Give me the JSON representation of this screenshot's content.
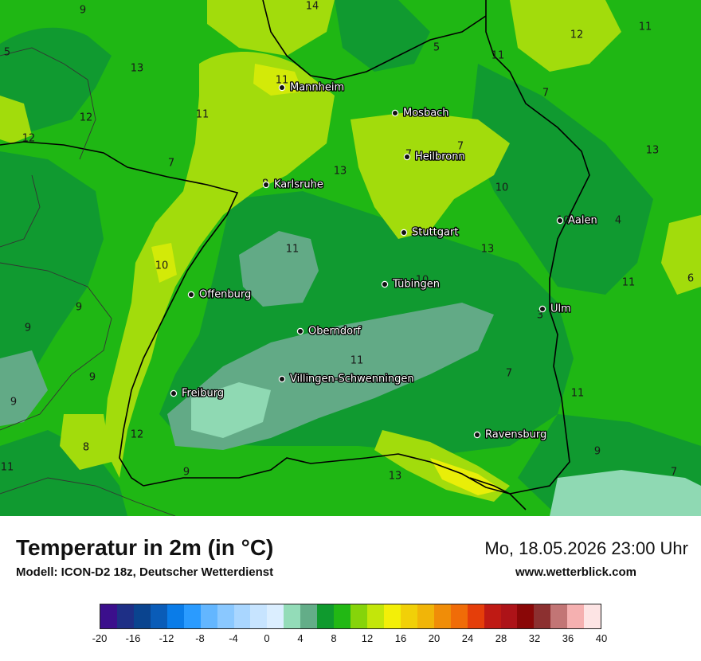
{
  "map": {
    "contour_labels": [
      {
        "text": "9",
        "tone": "dark"
      },
      {
        "text": "14",
        "tone": "dark"
      },
      {
        "text": "5",
        "tone": "dark"
      },
      {
        "text": "12",
        "tone": "dark"
      },
      {
        "text": "11",
        "tone": "dark"
      },
      {
        "text": "5",
        "tone": "dark"
      },
      {
        "text": "11",
        "tone": "dark"
      },
      {
        "text": "13",
        "tone": "dark"
      },
      {
        "text": "11",
        "tone": "dark"
      },
      {
        "text": "7",
        "tone": "dark"
      },
      {
        "text": "11",
        "tone": "dark"
      },
      {
        "text": "12",
        "tone": "dark"
      },
      {
        "text": "12",
        "tone": "dark"
      },
      {
        "text": "7",
        "tone": "dark"
      },
      {
        "text": "13",
        "tone": "dark"
      },
      {
        "text": "7",
        "tone": "dark"
      },
      {
        "text": "7",
        "tone": "dark"
      },
      {
        "text": "13",
        "tone": "dark"
      },
      {
        "text": "8",
        "tone": "dark"
      },
      {
        "text": "10",
        "tone": "dark"
      },
      {
        "text": "10",
        "tone": "dark"
      },
      {
        "text": "4",
        "tone": "dark"
      },
      {
        "text": "11",
        "tone": "dark"
      },
      {
        "text": "13",
        "tone": "dark"
      },
      {
        "text": "10",
        "tone": "dark"
      },
      {
        "text": "10",
        "tone": "dark"
      },
      {
        "text": "11",
        "tone": "dark"
      },
      {
        "text": "6",
        "tone": "dark"
      },
      {
        "text": "9",
        "tone": "dark"
      },
      {
        "text": "9",
        "tone": "dark"
      },
      {
        "text": "3",
        "tone": "dark"
      },
      {
        "text": "11",
        "tone": "dark"
      },
      {
        "text": "9",
        "tone": "dark"
      },
      {
        "text": "7",
        "tone": "dark"
      },
      {
        "text": "4",
        "tone": "dark"
      },
      {
        "text": "9",
        "tone": "dark"
      },
      {
        "text": "11",
        "tone": "dark"
      },
      {
        "text": "12",
        "tone": "dark"
      },
      {
        "text": "8",
        "tone": "dark"
      },
      {
        "text": "11",
        "tone": "dark"
      },
      {
        "text": "9",
        "tone": "dark"
      },
      {
        "text": "9",
        "tone": "dark"
      },
      {
        "text": "7",
        "tone": "dark"
      },
      {
        "text": "13",
        "tone": "dark"
      }
    ],
    "cities": [
      "Mannheim",
      "Mosbach",
      "Heilbronn",
      "Karlsruhe",
      "Stuttgart",
      "Aalen",
      "Tübingen",
      "Offenburg",
      "Ulm",
      "Oberndorf",
      "Villingen-Schwenningen",
      "Freiburg",
      "Ravensburg"
    ]
  },
  "footer": {
    "title": "Temperatur in 2m (in °C)",
    "subtitle": "Modell: ICON-D2 18z, Deutscher Wetterdienst",
    "datetime": "Mo, 18.05.2026 23:00 Uhr",
    "website": "www.wetterblick.com"
  },
  "legend": {
    "colors": [
      "#3b0f8c",
      "#1e2f86",
      "#0a448f",
      "#0a5cb8",
      "#0a7ce8",
      "#2a9bff",
      "#63b6ff",
      "#8ac8ff",
      "#a9d6ff",
      "#c7e4ff",
      "#dbeeff",
      "#93dcb8",
      "#63ad88",
      "#0f9a2e",
      "#22b814",
      "#86d40a",
      "#c3e60a",
      "#f3ef08",
      "#f1d008",
      "#f1b508",
      "#f08d08",
      "#f06c08",
      "#e53e0a",
      "#bf1a14",
      "#ad1318",
      "#8a0707",
      "#8c3030",
      "#c27575",
      "#f5b0b0",
      "#fde4e4"
    ],
    "tick_labels": [
      "-20",
      "-16",
      "-12",
      "-8",
      "-4",
      "0",
      "4",
      "8",
      "12",
      "16",
      "20",
      "24",
      "28",
      "32",
      "36",
      "40"
    ]
  }
}
